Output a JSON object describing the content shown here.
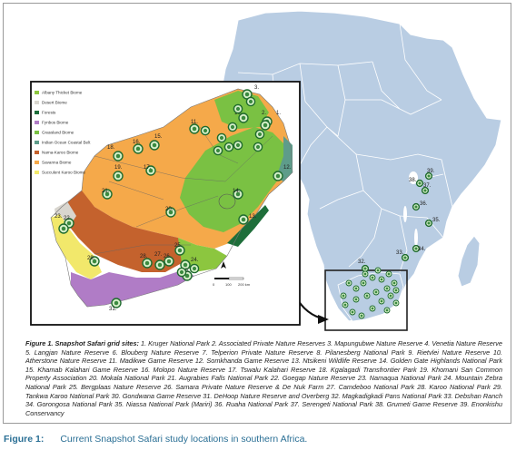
{
  "legend": [
    {
      "label": "Albany Thicket Biome",
      "color": "#8cc63f"
    },
    {
      "label": "Desert Biome",
      "color": "#d9d6cf"
    },
    {
      "label": "Forests",
      "color": "#1e6e3a"
    },
    {
      "label": "Fynbos Biome",
      "color": "#b07cc6"
    },
    {
      "label": "Grassland Biome",
      "color": "#7ac143"
    },
    {
      "label": "Indian Ocean Coastal Belt",
      "color": "#5e9c8a"
    },
    {
      "label": "Nama-Karoo Biome",
      "color": "#c4622d"
    },
    {
      "label": "Savanna Biome",
      "color": "#f5a94a"
    },
    {
      "label": "Succulent Karoo Biome",
      "color": "#f2e86b"
    }
  ],
  "inset_sites": [
    {
      "label": "1."
    },
    {
      "label": "2."
    },
    {
      "label": "3."
    },
    {
      "label": "10."
    },
    {
      "label": "11."
    },
    {
      "label": "12."
    },
    {
      "label": "13."
    },
    {
      "label": "14."
    },
    {
      "label": "15."
    },
    {
      "label": "16."
    },
    {
      "label": "17."
    },
    {
      "label": "18."
    },
    {
      "label": "19."
    },
    {
      "label": "20."
    },
    {
      "label": "21."
    },
    {
      "label": "22."
    },
    {
      "label": "23."
    },
    {
      "label": "24."
    },
    {
      "label": "25."
    },
    {
      "label": "26."
    },
    {
      "label": "27."
    },
    {
      "label": "28."
    },
    {
      "label": "29."
    },
    {
      "label": "30."
    },
    {
      "label": "31."
    }
  ],
  "africa_sites": [
    {
      "label": "32."
    },
    {
      "label": "33."
    },
    {
      "label": "34."
    },
    {
      "label": "35."
    },
    {
      "label": "36."
    },
    {
      "label": "37."
    },
    {
      "label": "38."
    },
    {
      "label": "39."
    }
  ],
  "scale_bar": {
    "zero": "0",
    "mid": "100",
    "far": "200 km"
  },
  "caption": {
    "lead": "Figure 1. Snapshot Safari grid sites:",
    "body": " 1. Kruger National Park 2. Associated Private Nature Reserves 3. Mapungubwe Nature Reserve 4. Venetia Nature Reserve 5. Langjan Nature Reserve 6. Blouberg Nature Reserve 7. Telperion Private Nature Reserve 8. Pilanesberg National Park 9. Rietvlei Nature Reserve 10. Atherstone Nature Reserve 11. Madikwe Game Reserve 12. Somkhanda Game Reserve 13. Ntsikeni Wildlife Reserve 14. Golden Gate Highlands National Park 15. Khamab Kalahari Game Reserve 16. Molopo Nature Reserve 17. Tswalu Kalahari Reserve 18. Kgalagadi Transfrontier Park 19. Khomani San Common Property Association 20. Mokala National Park 21. Augrabies Falls National Park 22. Goegap Nature Reserve 23. Namaqua National Park 24. Mountain Zebra National Park 25. Bergplaas Nature Reserve 26. Samara Private Nature Reserve & De Nuk Farm 27. Camdeboo National Park 28. Karoo National Park 29. Tankwa Karoo National Park 30. Gondwana Game Reserve 31. DeHoop Nature Reserve and Overberg 32. Magkadigkadi Pans National Park 33. Debshan Ranch 34. Gorongosa National Park 35. Niassa National Park (Mariri) 36. Ruaha National Park 37. Serengeti National Park 38. Grumeti Game Reserve 39. Enonkishu Conservancy"
  },
  "figure_label": {
    "number": "Figure 1:",
    "text": "Current Snapshot Safari study locations in southern Africa."
  }
}
